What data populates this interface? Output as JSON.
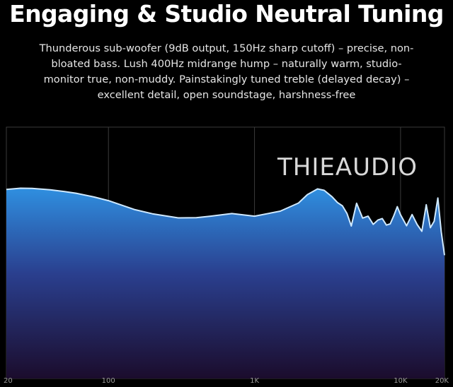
{
  "header": {
    "title": "Engaging & Studio Neutral Tuning",
    "description_lines": [
      "Thunderous sub-woofer (9dB output, 150Hz sharp cutoff) – precise, non-",
      "bloated bass. Lush 400Hz midrange hump – naturally warm, studio-",
      "monitor true, non-muddy. Painstakingly tuned treble (delayed decay) –",
      "excellent detail, open soundstage, harshness-free"
    ]
  },
  "brand": {
    "logo_text": "THIEAUDIO"
  },
  "colors": {
    "background": "#000000",
    "curve_line": "#cfe9ff",
    "fill_top": "#2f8fe0",
    "fill_mid": "#2a3f8e",
    "fill_bottom": "#1b0c2c",
    "grid": "#3a3a3a"
  },
  "chart_data": {
    "type": "area",
    "scale_x": "log",
    "grid": true,
    "x": [
      20,
      25,
      30,
      40,
      50,
      60,
      80,
      100,
      150,
      200,
      300,
      400,
      500,
      700,
      1000,
      1500,
      2000,
      2300,
      2700,
      3000,
      3400,
      3700,
      4000,
      4300,
      4600,
      5000,
      5500,
      6000,
      6500,
      7000,
      7500,
      8000,
      8500,
      9000,
      9500,
      10000,
      11000,
      12000,
      13000,
      14000,
      15000,
      16000,
      17000,
      18000,
      19000,
      20000
    ],
    "y": [
      59,
      59.5,
      59.4,
      58.8,
      58.1,
      57.4,
      55.8,
      54.3,
      50.6,
      48.8,
      47.1,
      47.2,
      47.8,
      48.9,
      47.8,
      49.9,
      53.3,
      56.8,
      59.2,
      58.6,
      55.9,
      53.5,
      52.1,
      48.9,
      43.7,
      53.2,
      47.0,
      47.8,
      44.4,
      46.2,
      46.8,
      44.1,
      44.6,
      48.0,
      51.8,
      48.4,
      43.8,
      48.5,
      44.3,
      41.5,
      52.6,
      43.0,
      45.7,
      55.4,
      41.3,
      31.5
    ],
    "x_ticks": [
      {
        "value": 20,
        "label": "20"
      },
      {
        "value": 100,
        "label": "100"
      },
      {
        "value": 1000,
        "label": "1K"
      },
      {
        "value": 10000,
        "label": "10K"
      },
      {
        "value": 20000,
        "label": "20K"
      }
    ],
    "xlim": [
      20,
      20000
    ],
    "ylim": [
      -20,
      85
    ]
  }
}
